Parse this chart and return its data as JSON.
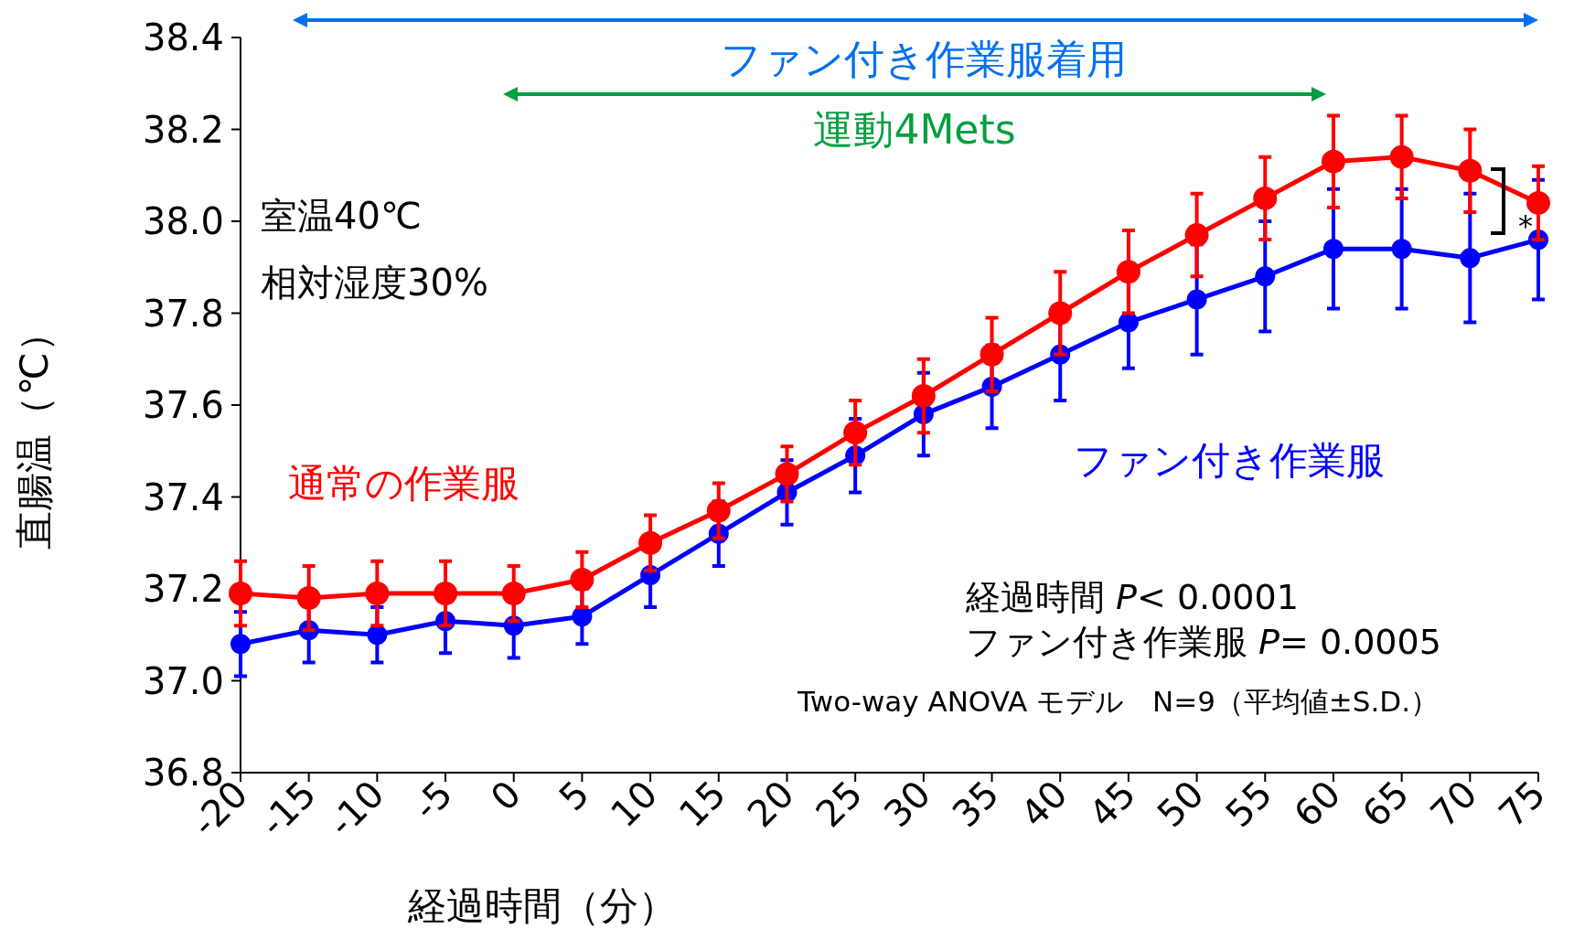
{
  "chart_data": {
    "type": "line",
    "xlabel": "経過時間（分）",
    "ylabel": "直腸温（℃）",
    "x": [
      -20,
      -15,
      -10,
      -5,
      0,
      5,
      10,
      15,
      20,
      25,
      30,
      35,
      40,
      45,
      50,
      55,
      60,
      65,
      70,
      75
    ],
    "series": [
      {
        "name": "通常の作業服",
        "color": "#ff0000",
        "values": [
          37.19,
          37.18,
          37.19,
          37.19,
          37.19,
          37.22,
          37.3,
          37.37,
          37.45,
          37.54,
          37.62,
          37.71,
          37.8,
          37.89,
          37.97,
          38.05,
          38.13,
          38.14,
          38.11,
          38.04
        ],
        "errors": [
          0.07,
          0.07,
          0.07,
          0.07,
          0.06,
          0.06,
          0.06,
          0.06,
          0.06,
          0.07,
          0.08,
          0.08,
          0.09,
          0.09,
          0.09,
          0.09,
          0.1,
          0.09,
          0.09,
          0.08
        ]
      },
      {
        "name": "ファン付き作業服",
        "color": "#0000ff",
        "values": [
          37.08,
          37.11,
          37.1,
          37.13,
          37.12,
          37.14,
          37.23,
          37.32,
          37.41,
          37.49,
          37.58,
          37.64,
          37.71,
          37.78,
          37.83,
          37.88,
          37.94,
          37.94,
          37.92,
          37.96
        ],
        "errors": [
          0.07,
          0.07,
          0.06,
          0.07,
          0.07,
          0.06,
          0.07,
          0.07,
          0.07,
          0.08,
          0.09,
          0.09,
          0.1,
          0.1,
          0.12,
          0.12,
          0.13,
          0.13,
          0.14,
          0.13
        ]
      }
    ],
    "xlim": [
      -20,
      75
    ],
    "xticks": [
      -20,
      -15,
      -10,
      -5,
      0,
      5,
      10,
      15,
      20,
      25,
      30,
      35,
      40,
      45,
      50,
      55,
      60,
      65,
      70,
      75
    ],
    "ylim": [
      36.8,
      38.4
    ],
    "yticks": [
      36.8,
      {
        "value": 37,
        "label": "37.0"
      },
      37.2,
      37.4,
      37.6,
      37.8,
      {
        "value": 38,
        "label": "38.0"
      },
      38.2,
      38.4
    ],
    "annotations": [
      "ファン付き作業服着用",
      "運動4Mets",
      "室温40℃",
      "相対湿度30%",
      "経過時間 *P*< 0.0001",
      "ファン付き作業服 *P*= 0.0005",
      "Two-way ANOVA モデル　N=9（平均値±S.D.）",
      {
        "text": "*",
        "x": 75,
        "y": 38.0
      }
    ],
    "marker": "circle",
    "grid": false,
    "line_style": "solid"
  }
}
